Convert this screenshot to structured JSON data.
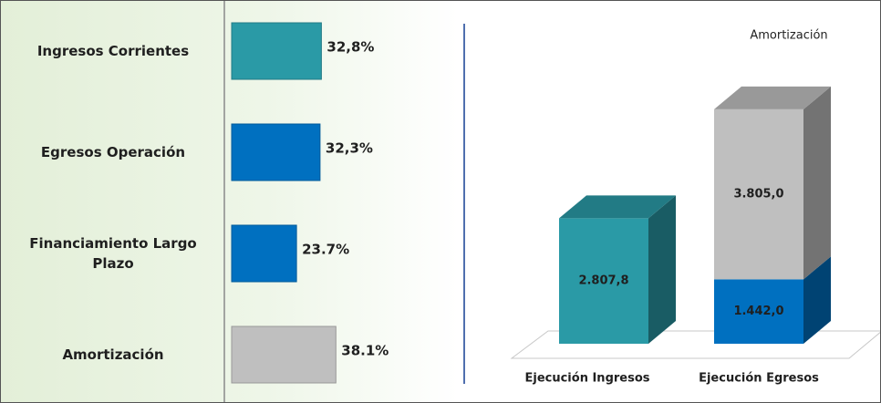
{
  "chart_data": [
    {
      "type": "hbar",
      "categories": [
        "Ingresos Corrientes",
        "Egresos Operación",
        "Financiamiento Largo Plazo",
        "Amortización"
      ],
      "values": [
        32.8,
        32.3,
        23.7,
        38.1
      ],
      "value_labels": [
        "32,8%",
        "32,3%",
        "23.7%",
        "38.1%"
      ],
      "colors": [
        "#2a9aa6",
        "#0070c0",
        "#0070c0",
        "#bfbfbf"
      ]
    },
    {
      "type": "stacked-bar-3d",
      "categories": [
        "Ejecución Ingresos",
        "Ejecución Egresos"
      ],
      "series": [
        {
          "colors": [
            "#2a9aa6",
            "#0070c0"
          ],
          "values": [
            2807.8,
            1442.0
          ],
          "value_labels": [
            "2.807,8",
            "1.442,0"
          ]
        },
        {
          "name": "Amortización",
          "color": "#bfbfbf",
          "values": [
            null,
            3805.0
          ],
          "value_labels": [
            null,
            "3.805,0"
          ]
        }
      ]
    }
  ]
}
